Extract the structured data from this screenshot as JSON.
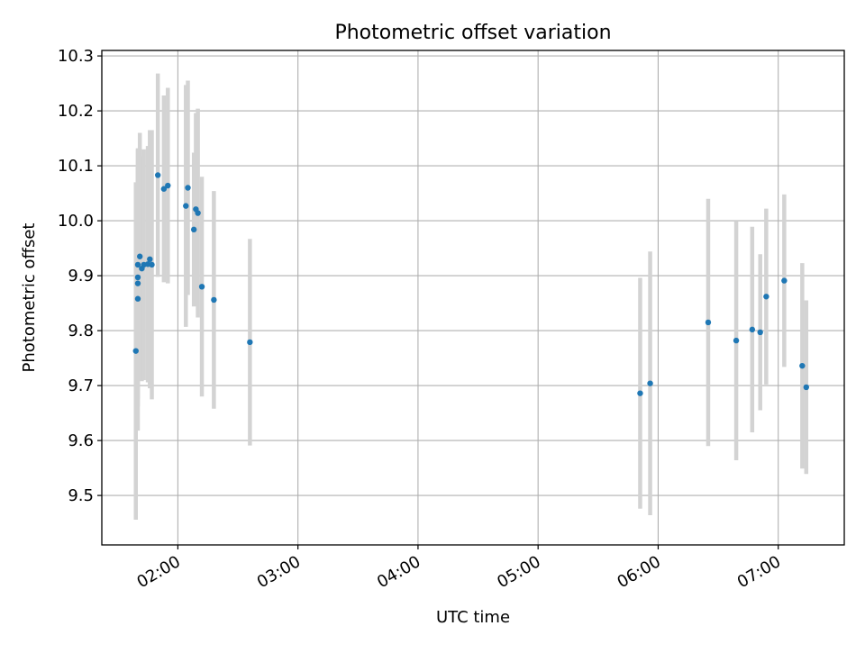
{
  "chart_data": {
    "type": "scatter",
    "title": "Photometric offset variation",
    "xlabel": "UTC time",
    "ylabel": "Photometric offset",
    "xlim": [
      "01:22",
      "07:33"
    ],
    "ylim": [
      9.41,
      10.31
    ],
    "grid": true,
    "x_ticks": [
      "02:00",
      "03:00",
      "04:00",
      "05:00",
      "06:00",
      "07:00"
    ],
    "y_ticks": [
      9.5,
      9.6,
      9.7,
      9.8,
      9.9,
      10.0,
      10.1,
      10.2,
      10.3
    ],
    "y_tick_labels": [
      "9.5",
      "9.6",
      "9.7",
      "9.8",
      "9.9",
      "10.0",
      "10.1",
      "10.2",
      "10.3"
    ],
    "colors": {
      "point": "#1f77b4",
      "errorbar": "#d3d3d3",
      "grid": "#b0b0b0"
    },
    "points": [
      {
        "x": "01:39",
        "y": 9.763,
        "err": 0.307
      },
      {
        "x": "01:40",
        "y": 9.858,
        "err": 0.24
      },
      {
        "x": "01:40",
        "y": 9.886,
        "err": 0.21
      },
      {
        "x": "01:40",
        "y": 9.897,
        "err": 0.235
      },
      {
        "x": "01:40",
        "y": 9.92,
        "err": 0.21
      },
      {
        "x": "01:41",
        "y": 9.935,
        "err": 0.225
      },
      {
        "x": "01:42",
        "y": 9.913,
        "err": 0.205
      },
      {
        "x": "01:43",
        "y": 9.92,
        "err": 0.21
      },
      {
        "x": "01:45",
        "y": 9.921,
        "err": 0.215
      },
      {
        "x": "01:46",
        "y": 9.93,
        "err": 0.235
      },
      {
        "x": "01:47",
        "y": 9.92,
        "err": 0.245
      },
      {
        "x": "01:50",
        "y": 10.083,
        "err": 0.185
      },
      {
        "x": "01:53",
        "y": 10.058,
        "err": 0.17
      },
      {
        "x": "01:55",
        "y": 10.064,
        "err": 0.178
      },
      {
        "x": "02:04",
        "y": 10.027,
        "err": 0.22
      },
      {
        "x": "02:05",
        "y": 10.06,
        "err": 0.195
      },
      {
        "x": "02:08",
        "y": 9.984,
        "err": 0.14
      },
      {
        "x": "02:09",
        "y": 10.021,
        "err": 0.175
      },
      {
        "x": "02:10",
        "y": 10.014,
        "err": 0.19
      },
      {
        "x": "02:12",
        "y": 9.88,
        "err": 0.2
      },
      {
        "x": "02:18",
        "y": 9.856,
        "err": 0.198
      },
      {
        "x": "02:36",
        "y": 9.779,
        "err": 0.188
      },
      {
        "x": "05:51",
        "y": 9.686,
        "err": 0.21
      },
      {
        "x": "05:56",
        "y": 9.704,
        "err": 0.24
      },
      {
        "x": "06:25",
        "y": 9.815,
        "err": 0.225
      },
      {
        "x": "06:39",
        "y": 9.782,
        "err": 0.218
      },
      {
        "x": "06:47",
        "y": 9.802,
        "err": 0.187
      },
      {
        "x": "06:51",
        "y": 9.797,
        "err": 0.142
      },
      {
        "x": "06:54",
        "y": 9.862,
        "err": 0.16
      },
      {
        "x": "07:03",
        "y": 9.891,
        "err": 0.157
      },
      {
        "x": "07:12",
        "y": 9.736,
        "err": 0.187
      },
      {
        "x": "07:14",
        "y": 9.697,
        "err": 0.158
      }
    ]
  }
}
